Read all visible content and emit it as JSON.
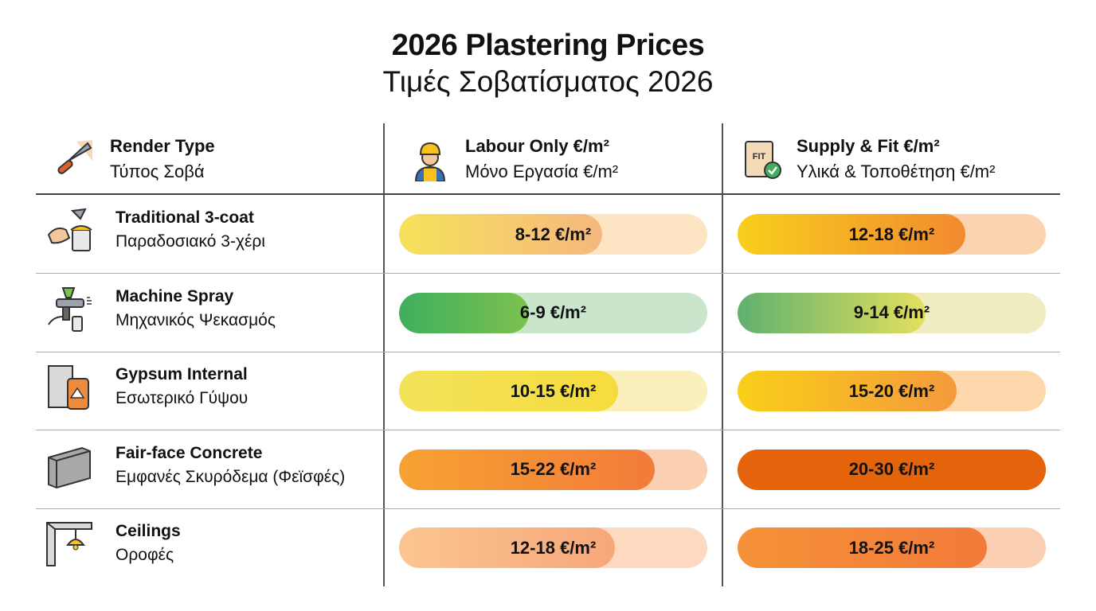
{
  "title": "2026 Plastering Prices",
  "subtitle": "Τιμές Σοβατίσματος 2026",
  "headers": [
    {
      "en": "Render Type",
      "el": "Τύπος Σοβά",
      "icon": "trowel-icon"
    },
    {
      "en": "Labour Only €/m²",
      "el": "Μόνο Εργασία €/m²",
      "icon": "worker-icon"
    },
    {
      "en": "Supply & Fit €/m²",
      "el": "Υλικά & Τοποθέτηση €/m²",
      "icon": "material-bag-check-icon",
      "icon_text": "FIT"
    }
  ],
  "chart_data": {
    "type": "table",
    "columns": [
      "Render Type",
      "Labour Only €/m²",
      "Supply & Fit €/m²"
    ],
    "rows": [
      {
        "en": "Traditional 3-coat",
        "el": "Παραδοσιακό 3-χέρι",
        "icon": "trowel-bucket-icon",
        "labour": {
          "label": "8-12 €/m²",
          "min": 8,
          "max": 12,
          "fill": 0.66,
          "from": "#f5e25a",
          "to": "#f6b77e",
          "track": "#fde5c4"
        },
        "supply": {
          "label": "12-18 €/m²",
          "min": 12,
          "max": 18,
          "fill": 0.74,
          "from": "#f8cf1c",
          "to": "#f28a30",
          "track": "#fcd3b0"
        }
      },
      {
        "en": "Machine Spray",
        "el": "Μηχανικός Ψεκασμός",
        "icon": "spray-gun-icon",
        "labour": {
          "label": "6-9 €/m²",
          "min": 6,
          "max": 9,
          "fill": 0.42,
          "from": "#3fae5e",
          "to": "#7cc24e",
          "track": "#c9e5cb"
        },
        "supply": {
          "label": "9-14 €/m²",
          "min": 9,
          "max": 14,
          "fill": 0.61,
          "from": "#5fb06e",
          "to": "#e3e05e",
          "track": "#eeecc0"
        }
      },
      {
        "en": "Gypsum Internal",
        "el": "Εσωτερικό Γύψου",
        "icon": "gypsum-board-bag-icon",
        "labour": {
          "label": "10-15 €/m²",
          "min": 10,
          "max": 15,
          "fill": 0.71,
          "from": "#f3e35a",
          "to": "#f5dc3e",
          "track": "#fbefbc"
        },
        "supply": {
          "label": "15-20 €/m²",
          "min": 15,
          "max": 20,
          "fill": 0.71,
          "from": "#f9cf18",
          "to": "#f49a3c",
          "track": "#fdd8ad"
        }
      },
      {
        "en": "Fair-face Concrete",
        "el": "Εμφανές Σκυρόδεμα (Φεϊσφές)",
        "icon": "concrete-panel-icon",
        "labour": {
          "label": "15-22 €/m²",
          "min": 15,
          "max": 22,
          "fill": 0.83,
          "from": "#f7a232",
          "to": "#f27b3a",
          "track": "#fbcfb2"
        },
        "supply": {
          "label": "20-30 €/m²",
          "min": 20,
          "max": 30,
          "fill": 1.0,
          "from": "#e4640c",
          "to": "#e4640c",
          "track": "#e4640c"
        }
      },
      {
        "en": "Ceilings",
        "el": "Οροφές",
        "icon": "ceiling-lamp-icon",
        "labour": {
          "label": "12-18 €/m²",
          "min": 12,
          "max": 18,
          "fill": 0.7,
          "from": "#fbc591",
          "to": "#f7a77a",
          "track": "#fdd9c0"
        },
        "supply": {
          "label": "18-25 €/m²",
          "min": 18,
          "max": 25,
          "fill": 0.81,
          "from": "#f59238",
          "to": "#f27a3a",
          "track": "#fbcfb2"
        }
      }
    ]
  }
}
